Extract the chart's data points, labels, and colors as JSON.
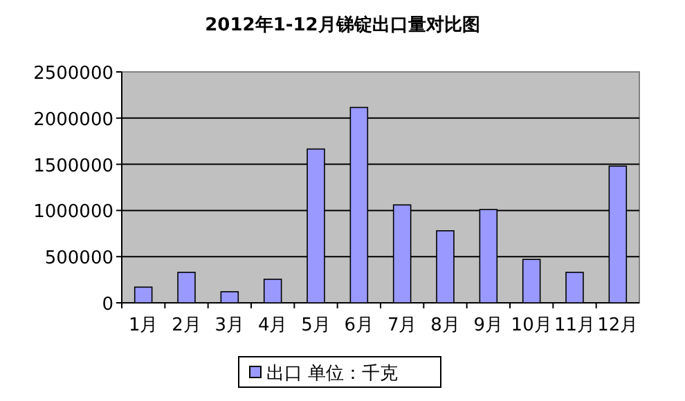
{
  "chart_data": {
    "type": "bar",
    "title": "2012年1-12月锑锭出口量对比图",
    "categories": [
      "1月",
      "2月",
      "3月",
      "4月",
      "5月",
      "6月",
      "7月",
      "8月",
      "9月",
      "10月",
      "11月",
      "12月"
    ],
    "series": [
      {
        "name": "出口 单位：千克",
        "color": "#9999ff",
        "values": [
          170000,
          330000,
          120000,
          255000,
          1665000,
          2115000,
          1060000,
          780000,
          1010000,
          470000,
          330000,
          1480000
        ]
      }
    ],
    "ylim": [
      0,
      2500000
    ],
    "yticks": [
      0,
      500000,
      1000000,
      1500000,
      2000000,
      2500000
    ],
    "grid": "y",
    "legend": "bottom"
  }
}
